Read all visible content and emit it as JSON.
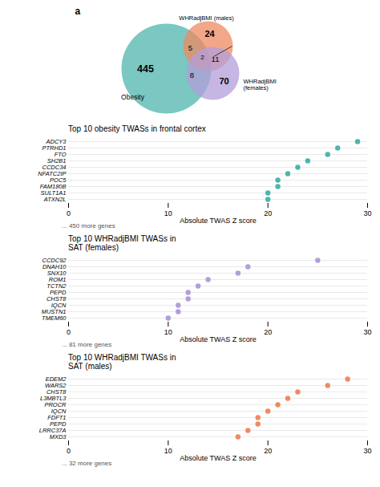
{
  "chart_data": [
    {
      "type": "venn",
      "title": "a",
      "series": [
        {
          "name": "Obesity",
          "color": "#4DB6AC"
        },
        {
          "name": "WHRadjBMI (males)",
          "color": "#EF8A62"
        },
        {
          "name": "WHRadjBMI\n(females)",
          "color": "#B39DDB"
        }
      ],
      "regions": [
        {
          "sets": [
            "Obesity"
          ],
          "value": 445
        },
        {
          "sets": [
            "WHRadjBMI (males)"
          ],
          "value": 24
        },
        {
          "sets": [
            "WHRadjBMI\n(females)"
          ],
          "value": 70
        },
        {
          "sets": [
            "Obesity",
            "WHRadjBMI (males)"
          ],
          "value": 5
        },
        {
          "sets": [
            "Obesity",
            "WHRadjBMI\n(females)"
          ],
          "value": 8
        },
        {
          "sets": [
            "WHRadjBMI (males)",
            "WHRadjBMI\n(females)"
          ],
          "value": 11
        },
        {
          "sets": [
            "Obesity",
            "WHRadjBMI (males)",
            "WHRadjBMI\n(females)"
          ],
          "value": 2
        }
      ]
    },
    {
      "type": "dot",
      "title": "Top 10 obesity TWASs in frontal cortex",
      "categories": [
        "ADCY3",
        "PTRHD1",
        "FTO",
        "SH2B1",
        "CCDC34",
        "NFATC2IP",
        "POC5",
        "FAM180B",
        "SULT1A1",
        "ATXN2L"
      ],
      "values": [
        29,
        27,
        26,
        24,
        23,
        22,
        21,
        21,
        20,
        20
      ],
      "color": "#4DB6AC",
      "xlabel": "Absolute TWAS Z score",
      "xlim": [
        0,
        30
      ],
      "xticks": [
        0,
        10,
        20,
        30
      ],
      "grid": true,
      "annotations": [
        "... 450 more genes"
      ]
    },
    {
      "type": "dot",
      "title": "Top 10 WHRadjBMI TWASs in\nSAT (females)",
      "categories": [
        "CCDC92",
        "DNAH10",
        "SNX10",
        "ROM1",
        "TCTN2",
        "PEPD",
        "CHST8",
        "IQCN",
        "MUSTN1",
        "TMEM60"
      ],
      "values": [
        25,
        18,
        17,
        14,
        13,
        12,
        12,
        11,
        11,
        10
      ],
      "color": "#B39DDB",
      "xlabel": "Absolute TWAS Z score",
      "xlim": [
        0,
        30
      ],
      "xticks": [
        0,
        10,
        20,
        30
      ],
      "grid": true,
      "annotations": [
        "... 81 more genes"
      ]
    },
    {
      "type": "dot",
      "title": "Top 10 WHRadjBMI TWASs in\nSAT (males)",
      "categories": [
        "EDEM2",
        "WARS2",
        "CHST8",
        "L3MBTL3",
        "PROCR",
        "IQCN",
        "FDFT1",
        "PEPD",
        "LRRC37A",
        "MXD3"
      ],
      "values": [
        28,
        26,
        23,
        22,
        21,
        20,
        19,
        19,
        18,
        17
      ],
      "color": "#EF8A62",
      "xlabel": "Absolute TWAS Z score",
      "xlim": [
        0,
        30
      ],
      "xticks": [
        0,
        10,
        20,
        30
      ],
      "grid": true,
      "annotations": [
        "... 32 more genes"
      ]
    }
  ]
}
